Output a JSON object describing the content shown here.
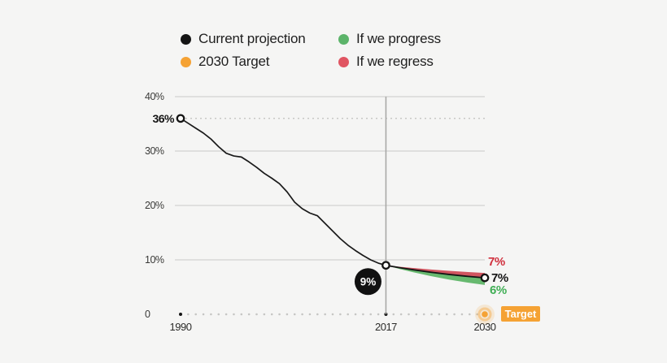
{
  "colors": {
    "background": "#f5f5f4",
    "grid": "#d2d2d0",
    "axis_dots": "#c6c6c4",
    "divider": "#a5a5a3",
    "tick_text": "#3a3a38",
    "black": "#141414",
    "orange": "#f5a234",
    "green": "#5cb46a",
    "red": "#e05562"
  },
  "legend": {
    "items": [
      {
        "label": "Current projection",
        "color": "#141414"
      },
      {
        "label": "2030 Target",
        "color": "#f5a234"
      },
      {
        "label": "If we progress",
        "color": "#5cb46a"
      },
      {
        "label": "If we regress",
        "color": "#e05562"
      }
    ]
  },
  "chart_data": {
    "type": "line",
    "title": "",
    "xlabel": "",
    "ylabel": "",
    "xlim": [
      1990,
      2030
    ],
    "ylim": [
      0,
      40
    ],
    "x_ticks": [
      {
        "label": "1990",
        "value": 1990
      },
      {
        "label": "2017",
        "value": 2017
      },
      {
        "label": "2030",
        "value": 2030
      }
    ],
    "y_ticks": [
      {
        "label": "40%",
        "value": 40
      },
      {
        "label": "30%",
        "value": 30
      },
      {
        "label": "20%",
        "value": 20
      },
      {
        "label": "10%",
        "value": 10
      },
      {
        "label": "0",
        "value": 0
      }
    ],
    "gridline_values": [
      10,
      20,
      30,
      40
    ],
    "reference_dotted_value": 36,
    "divider_year": 2017,
    "axis_dot_years": {
      "start": 1990,
      "end": 2029,
      "highlight": [
        1990,
        2017
      ]
    },
    "series": [
      {
        "name": "Current projection (historical)",
        "color": "#1a1a1a",
        "points": [
          [
            1990,
            36.0
          ],
          [
            1991,
            35.1
          ],
          [
            1992,
            34.2
          ],
          [
            1993,
            33.3
          ],
          [
            1994,
            32.2
          ],
          [
            1995,
            30.8
          ],
          [
            1996,
            29.6
          ],
          [
            1997,
            29.1
          ],
          [
            1998,
            28.9
          ],
          [
            1999,
            28.0
          ],
          [
            2000,
            27.0
          ],
          [
            2001,
            25.9
          ],
          [
            2002,
            25.0
          ],
          [
            2003,
            24.0
          ],
          [
            2004,
            22.5
          ],
          [
            2005,
            20.6
          ],
          [
            2006,
            19.4
          ],
          [
            2007,
            18.6
          ],
          [
            2008,
            18.1
          ],
          [
            2009,
            16.7
          ],
          [
            2010,
            15.3
          ],
          [
            2011,
            13.9
          ],
          [
            2012,
            12.7
          ],
          [
            2013,
            11.7
          ],
          [
            2014,
            10.8
          ],
          [
            2015,
            10.0
          ],
          [
            2016,
            9.4
          ],
          [
            2017,
            9.0
          ]
        ]
      }
    ],
    "projections": [
      {
        "name": "If we progress",
        "kind": "band",
        "color": "#67b96f",
        "start": [
          2017,
          9
        ],
        "end_top": 6.7,
        "end_bottom": 5.4,
        "label": "6%",
        "label_color": "#3fae54",
        "label_side": "below"
      },
      {
        "name": "If we regress",
        "kind": "band",
        "color": "#d05560",
        "start": [
          2017,
          9
        ],
        "end_top": 7.6,
        "end_bottom": 6.7,
        "label": "7%",
        "label_color": "#d02f3d",
        "label_side": "above"
      },
      {
        "name": "Current projection",
        "kind": "line",
        "color": "#141414",
        "start": [
          2017,
          9
        ],
        "end": 6.7,
        "label": "7%",
        "label_color": "#141414",
        "label_side": "right"
      }
    ],
    "annotations": [
      {
        "type": "start-label",
        "text": "36%",
        "year": 1990,
        "value": 36
      },
      {
        "type": "badge",
        "text": "9%",
        "year": 2017,
        "value": 9,
        "bg": "#111111",
        "fg": "#ffffff"
      },
      {
        "type": "target",
        "text": "Target",
        "year": 2030,
        "value": 0,
        "color": "#f5a234",
        "fg": "#ffffff"
      }
    ],
    "markers": [
      {
        "year": 1990,
        "value": 36.0
      },
      {
        "year": 2017,
        "value": 9.0
      },
      {
        "year": 2030,
        "value": 6.7
      }
    ],
    "legend_position": "top"
  }
}
